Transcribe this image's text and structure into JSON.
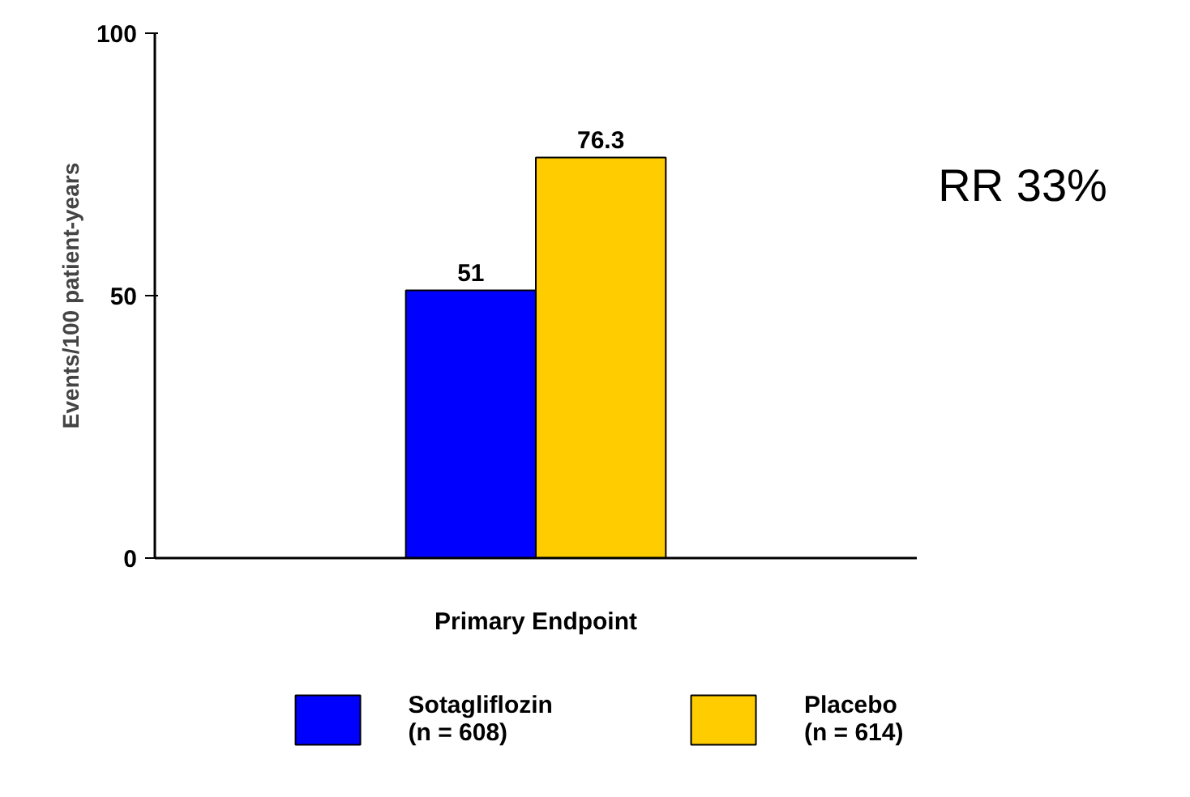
{
  "chart_data": {
    "type": "bar",
    "ylabel": "Events/100 patient-years",
    "categories": [
      "Primary Endpoint"
    ],
    "series": [
      {
        "name": "Sotagliflozin\n(n = 608)",
        "color": "#0000ff",
        "values": [
          51
        ]
      },
      {
        "name": "Placebo\n(n = 614)",
        "color": "#ffcc00",
        "values": [
          76.3
        ]
      }
    ],
    "ylim": [
      0,
      100
    ],
    "yticks": [
      0,
      50,
      100
    ],
    "grid": false,
    "legend": "bottom",
    "data_labels": true,
    "annotations": [
      "RR 33%"
    ]
  }
}
